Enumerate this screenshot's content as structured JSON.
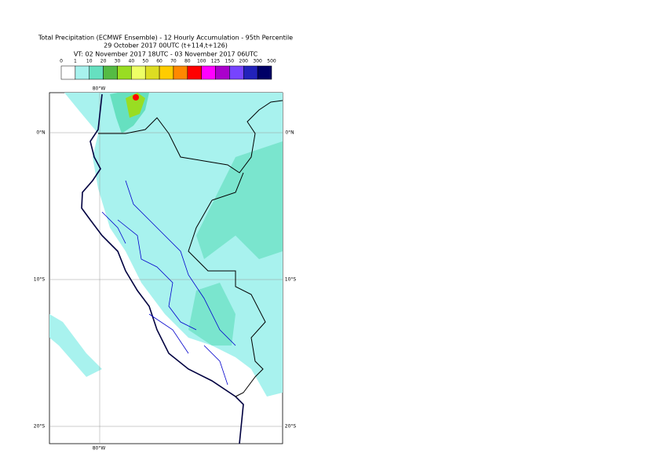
{
  "header": {
    "title": "Total Precipitation (ECMWF Ensemble) - 12 Hourly Accumulation - 95th Percentile",
    "base_time": "29 October 2017 00UTC (t+114,t+126)",
    "valid_time": "VT: 02 November 2017 18UTC - 03 November 2017 06UTC"
  },
  "legend": {
    "labels": [
      "0",
      "1",
      "10",
      "20",
      "30",
      "40",
      "50",
      "60",
      "70",
      "80",
      "100",
      "125",
      "150",
      "200",
      "300",
      "500"
    ],
    "colors": [
      "#ffffff",
      "#a8f2ee",
      "#66e0c0",
      "#55bb44",
      "#99dd22",
      "#eeff66",
      "#dddd22",
      "#ffcc00",
      "#ff8800",
      "#ff0000",
      "#ff00ff",
      "#aa00cc",
      "#7744ff",
      "#2222bb",
      "#000066"
    ]
  },
  "map": {
    "lon_top": "80°W",
    "lon_bottom": "80°W",
    "lat_labels": [
      "0°N",
      "10°S",
      "20°S"
    ]
  }
}
